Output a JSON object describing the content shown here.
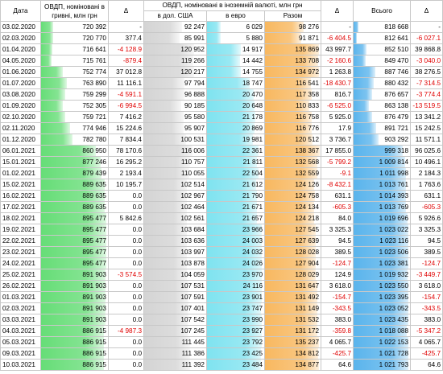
{
  "headers": {
    "date": "Дата",
    "uah_group": "ОВДП, номіновані в гривні, млн грн",
    "delta": "Δ",
    "fx_group": "ОВДП, номіновані в іноземній валюті, млн грн",
    "usd": "в дол. США",
    "eur": "в евро",
    "fx_total": "Разом",
    "fx_delta": "Δ",
    "total": "Всього",
    "total_delta": "Δ"
  },
  "colors": {
    "uah_bar": "#66dd77",
    "usd_bar": "#d4d4d4",
    "eur_bar": "#7fe3f0",
    "fx_total_bar": "#f8b860",
    "total_bar": "#5ab4ec",
    "negative": "#e00000"
  },
  "scales": {
    "uah": [
      680000,
      900000
    ],
    "usd": [
      0,
      150000
    ],
    "eur": [
      0,
      25000
    ],
    "fx_total": [
      0,
      140000
    ],
    "total": [
      800000,
      1030000
    ]
  },
  "rows": [
    {
      "date": "03.02.2020",
      "uah": "720 392",
      "uah_d": "-",
      "usd": "92 247",
      "eur": "6 029",
      "fx": "98 276",
      "fx_d": "-",
      "total": "818 668",
      "total_d": "-"
    },
    {
      "date": "02.03.2020",
      "uah": "720 770",
      "uah_d": "377.4",
      "usd": "85 991",
      "eur": "5 880",
      "fx": "91 871",
      "fx_d": "-6 404.5",
      "total": "812 641",
      "total_d": "-6 027.1"
    },
    {
      "date": "01.04.2020",
      "uah": "716 641",
      "uah_d": "-4 128.9",
      "usd": "120 952",
      "eur": "14 917",
      "fx": "135 869",
      "fx_d": "43 997.7",
      "total": "852 510",
      "total_d": "39 868.8"
    },
    {
      "date": "04.05.2020",
      "uah": "715 761",
      "uah_d": "-879.4",
      "usd": "119 266",
      "eur": "14 442",
      "fx": "133 708",
      "fx_d": "-2 160.6",
      "total": "849 470",
      "total_d": "-3 040.0"
    },
    {
      "date": "01.06.2020",
      "uah": "752 774",
      "uah_d": "37 012.8",
      "usd": "120 217",
      "eur": "14 755",
      "fx": "134 972",
      "fx_d": "1 263.8",
      "total": "887 746",
      "total_d": "38 276.5"
    },
    {
      "date": "01.07.2020",
      "uah": "763 890",
      "uah_d": "11 116.1",
      "usd": "97 794",
      "eur": "18 747",
      "fx": "116 541",
      "fx_d": "-18 430.7",
      "total": "880 432",
      "total_d": "-7 314.5"
    },
    {
      "date": "03.08.2020",
      "uah": "759 299",
      "uah_d": "-4 591.1",
      "usd": "96 888",
      "eur": "20 470",
      "fx": "117 358",
      "fx_d": "816.7",
      "total": "876 657",
      "total_d": "-3 774.4"
    },
    {
      "date": "01.09.2020",
      "uah": "752 305",
      "uah_d": "-6 994.5",
      "usd": "90 185",
      "eur": "20 648",
      "fx": "110 833",
      "fx_d": "-6 525.0",
      "total": "863 138",
      "total_d": "-13 519.5"
    },
    {
      "date": "02.10.2020",
      "uah": "759 721",
      "uah_d": "7 416.2",
      "usd": "95 580",
      "eur": "21 178",
      "fx": "116 758",
      "fx_d": "5 925.0",
      "total": "876 479",
      "total_d": "13 341.2"
    },
    {
      "date": "02.11.2020",
      "uah": "774 946",
      "uah_d": "15 224.6",
      "usd": "95 907",
      "eur": "20 869",
      "fx": "116 776",
      "fx_d": "17.9",
      "total": "891 721",
      "total_d": "15 242.5"
    },
    {
      "date": "01.12.2020",
      "uah": "782 780",
      "uah_d": "7 834.4",
      "usd": "100 531",
      "eur": "19 981",
      "fx": "120 512",
      "fx_d": "3 736.7",
      "total": "903 292",
      "total_d": "11 571.1"
    },
    {
      "date": "06.01.2021",
      "uah": "860 950",
      "uah_d": "78 170.6",
      "usd": "116 006",
      "eur": "22 361",
      "fx": "138 367",
      "fx_d": "17 855.0",
      "total": "999 318",
      "total_d": "96 025.6"
    },
    {
      "date": "15.01.2021",
      "uah": "877 246",
      "uah_d": "16 295.2",
      "usd": "110 757",
      "eur": "21 811",
      "fx": "132 568",
      "fx_d": "-5 799.2",
      "total": "1 009 814",
      "total_d": "10 496.1"
    },
    {
      "date": "01.02.2021",
      "uah": "879 439",
      "uah_d": "2 193.4",
      "usd": "110 055",
      "eur": "22 504",
      "fx": "132 559",
      "fx_d": "-9.1",
      "total": "1 011 998",
      "total_d": "2 184.3"
    },
    {
      "date": "15.02.2021",
      "uah": "889 635",
      "uah_d": "10 195.7",
      "usd": "102 514",
      "eur": "21 612",
      "fx": "124 126",
      "fx_d": "-8 432.1",
      "total": "1 013 761",
      "total_d": "1 763.6"
    },
    {
      "date": "16.02.2021",
      "uah": "889 635",
      "uah_d": "0.0",
      "usd": "102 967",
      "eur": "21 790",
      "fx": "124 758",
      "fx_d": "631.1",
      "total": "1 014 393",
      "total_d": "631.1"
    },
    {
      "date": "17.02.2021",
      "uah": "889 635",
      "uah_d": "0.0",
      "usd": "102 464",
      "eur": "21 671",
      "fx": "124 134",
      "fx_d": "-605.3",
      "total": "1 013 769",
      "total_d": "-605.3"
    },
    {
      "date": "18.02.2021",
      "uah": "895 477",
      "uah_d": "5 842.6",
      "usd": "102 561",
      "eur": "21 657",
      "fx": "124 218",
      "fx_d": "84.0",
      "total": "1 019 696",
      "total_d": "5 926.6"
    },
    {
      "date": "19.02.2021",
      "uah": "895 477",
      "uah_d": "0.0",
      "usd": "103 684",
      "eur": "23 966",
      "fx": "127 545",
      "fx_d": "3 325.3",
      "total": "1 023 022",
      "total_d": "3 325.3"
    },
    {
      "date": "22.02.2021",
      "uah": "895 477",
      "uah_d": "0.0",
      "usd": "103 636",
      "eur": "24 003",
      "fx": "127 639",
      "fx_d": "94.5",
      "total": "1 023 116",
      "total_d": "94.5"
    },
    {
      "date": "23.02.2021",
      "uah": "895 477",
      "uah_d": "0.0",
      "usd": "103 997",
      "eur": "24 032",
      "fx": "128 028",
      "fx_d": "389.5",
      "total": "1 023 506",
      "total_d": "389.5"
    },
    {
      "date": "24.02.2021",
      "uah": "895 477",
      "uah_d": "0.0",
      "usd": "103 878",
      "eur": "24 026",
      "fx": "127 904",
      "fx_d": "-124.7",
      "total": "1 023 381",
      "total_d": "-124.7"
    },
    {
      "date": "25.02.2021",
      "uah": "891 903",
      "uah_d": "-3 574.5",
      "usd": "104 059",
      "eur": "23 970",
      "fx": "128 029",
      "fx_d": "124.9",
      "total": "1 019 932",
      "total_d": "-3 449.7"
    },
    {
      "date": "26.02.2021",
      "uah": "891 903",
      "uah_d": "0.0",
      "usd": "107 531",
      "eur": "24 116",
      "fx": "131 647",
      "fx_d": "3 618.0",
      "total": "1 023 550",
      "total_d": "3 618.0"
    },
    {
      "date": "01.03.2021",
      "uah": "891 903",
      "uah_d": "0.0",
      "usd": "107 591",
      "eur": "23 901",
      "fx": "131 492",
      "fx_d": "-154.7",
      "total": "1 023 395",
      "total_d": "-154.7"
    },
    {
      "date": "02.03.2021",
      "uah": "891 903",
      "uah_d": "0.0",
      "usd": "107 401",
      "eur": "23 747",
      "fx": "131 149",
      "fx_d": "-343.5",
      "total": "1 023 052",
      "total_d": "-343.5"
    },
    {
      "date": "03.03.2021",
      "uah": "891 903",
      "uah_d": "0.0",
      "usd": "107 542",
      "eur": "23 990",
      "fx": "131 532",
      "fx_d": "383.0",
      "total": "1 023 435",
      "total_d": "383.0"
    },
    {
      "date": "04.03.2021",
      "uah": "886 915",
      "uah_d": "-4 987.3",
      "usd": "107 245",
      "eur": "23 927",
      "fx": "131 172",
      "fx_d": "-359.8",
      "total": "1 018 088",
      "total_d": "-5 347.2"
    },
    {
      "date": "05.03.2021",
      "uah": "886 915",
      "uah_d": "0.0",
      "usd": "111 445",
      "eur": "23 792",
      "fx": "135 237",
      "fx_d": "4 065.7",
      "total": "1 022 153",
      "total_d": "4 065.7"
    },
    {
      "date": "09.03.2021",
      "uah": "886 915",
      "uah_d": "0.0",
      "usd": "111 386",
      "eur": "23 425",
      "fx": "134 812",
      "fx_d": "-425.7",
      "total": "1 021 728",
      "total_d": "-425.7"
    },
    {
      "date": "10.03.2021",
      "uah": "886 915",
      "uah_d": "0.0",
      "usd": "111 392",
      "eur": "23 484",
      "fx": "134 877",
      "fx_d": "64.6",
      "total": "1 021 793",
      "total_d": "64.6"
    }
  ]
}
